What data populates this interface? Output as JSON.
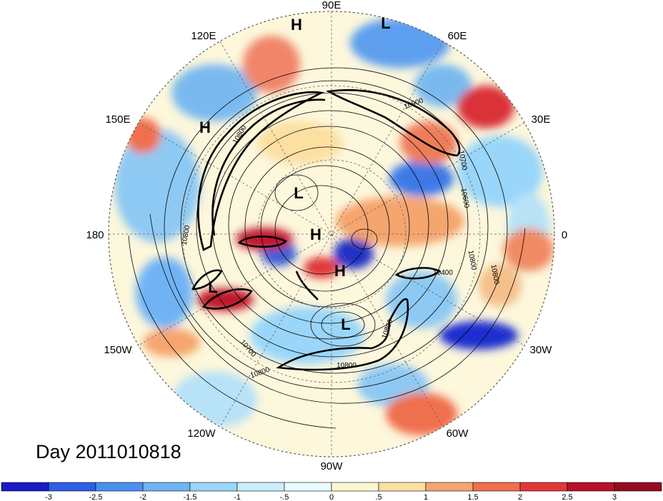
{
  "map": {
    "longitude_labels": [
      "90E",
      "60E",
      "30E",
      "0",
      "30W",
      "60W",
      "90W",
      "120W",
      "150W",
      "180",
      "150E",
      "120E"
    ],
    "pressure_systems": [
      {
        "label": "H",
        "name": "high-90e"
      },
      {
        "label": "L",
        "name": "low-70e"
      },
      {
        "label": "H",
        "name": "high-150e"
      },
      {
        "label": "L",
        "name": "low-siberia"
      },
      {
        "label": "H",
        "name": "high-pole"
      },
      {
        "label": "H",
        "name": "high-canada"
      },
      {
        "label": "L",
        "name": "low-hudson"
      },
      {
        "label": "L",
        "name": "low-pacific"
      }
    ],
    "contour_labels": [
      "10900",
      "10800",
      "10700",
      "10800",
      "10600",
      "10800",
      "10400",
      "10800",
      "10800",
      "10700",
      "10800",
      "10800"
    ],
    "colors": {
      "ocean_neutral": "#fdfbe6",
      "positive_strong": "#c9262c",
      "negative_strong": "#1f2fd0"
    }
  },
  "day_label": "Day 2011010818",
  "colorbar": {
    "ticks": [
      "-3",
      "-2.5",
      "-2",
      "-1.5",
      "-1",
      "-.5",
      "0",
      ".5",
      "1",
      "1.5",
      "2",
      "2.5",
      "3"
    ],
    "colors": [
      "#1a1ac8",
      "#2e5fe6",
      "#4a8ff0",
      "#6fb3f5",
      "#9ad6fa",
      "#c8eefc",
      "#e7fbfd",
      "#fdf6d2",
      "#fce0a2",
      "#f5a56e",
      "#ef6f4e",
      "#e2373a",
      "#b8102a",
      "#960a1e"
    ]
  }
}
